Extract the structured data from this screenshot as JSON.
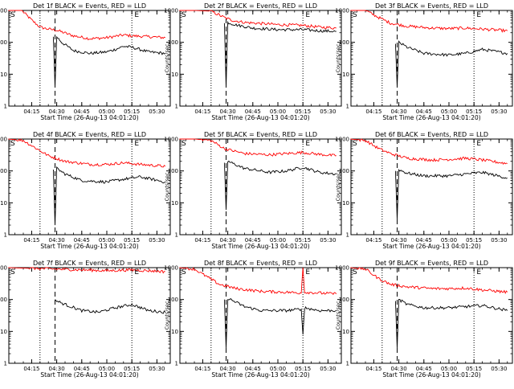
{
  "figure": {
    "title_suffix": "BLACK = Events, RED = LLD",
    "x_label": "Start Time (26-Aug-13 04:01:20)",
    "y_label": "Counts/sec",
    "x_ticks": [
      "04:15",
      "04:30",
      "04:45",
      "05:00",
      "05:15",
      "05:30"
    ],
    "y_ticks": [
      "1",
      "10",
      "100",
      "1000"
    ],
    "start_marker": "S",
    "end_marker": "E",
    "colors": {
      "events": "#000000",
      "lld": "#ff0000",
      "axes": "#000000"
    }
  },
  "chart_data": [
    {
      "type": "line",
      "title": "Det 1f BLACK = Events, RED = LLD",
      "xlabel": "Start Time (26-Aug-13 04:01:20)",
      "ylabel": "Counts/sec",
      "yscale": "log",
      "ylim": [
        1,
        1000
      ],
      "xlim": [
        "04:01:20",
        "05:38:00"
      ],
      "x_ticks": [
        "04:15",
        "04:30",
        "04:45",
        "05:00",
        "05:15",
        "05:30"
      ],
      "y_ticks": [
        "1",
        "10",
        "100",
        "1000"
      ],
      "markers": {
        "S": "04:01:20",
        "E": "05:18"
      },
      "vlines": {
        "dotted": [
          "04:20",
          "05:15"
        ],
        "dashed": [
          "04:29"
        ]
      },
      "series": [
        {
          "name": "RED = LLD",
          "color": "#ff0000",
          "x": [
            "04:01",
            "04:09",
            "04:15",
            "04:20",
            "04:25",
            "04:30",
            "04:40",
            "04:50",
            "05:00",
            "05:10",
            "05:15",
            "05:25",
            "05:35"
          ],
          "y": [
            1000,
            1000,
            500,
            300,
            260,
            240,
            160,
            130,
            140,
            170,
            160,
            150,
            140
          ]
        },
        {
          "name": "BLACK = Events",
          "color": "#000000",
          "x": [
            "04:28",
            "04:29",
            "04:30",
            "04:33",
            "04:40",
            "04:50",
            "05:00",
            "05:05",
            "05:10",
            "05:15",
            "05:25",
            "05:35"
          ],
          "y": [
            150,
            4,
            150,
            100,
            55,
            45,
            50,
            60,
            75,
            70,
            50,
            45
          ]
        }
      ]
    },
    {
      "type": "line",
      "title": "Det 2f BLACK = Events, RED = LLD",
      "xlabel": "Start Time (26-Aug-13 04:01:20)",
      "ylabel": "Counts/sec",
      "yscale": "log",
      "ylim": [
        1,
        1000
      ],
      "xlim": [
        "04:01:20",
        "05:38:00"
      ],
      "x_ticks": [
        "04:15",
        "04:30",
        "04:45",
        "05:00",
        "05:15",
        "05:30"
      ],
      "y_ticks": [
        "1",
        "10",
        "100",
        "1000"
      ],
      "markers": {
        "S": "04:01:20",
        "E": "05:18"
      },
      "vlines": {
        "dotted": [
          "04:20",
          "05:15"
        ],
        "dashed": [
          "04:29"
        ]
      },
      "series": [
        {
          "name": "RED = LLD",
          "color": "#ff0000",
          "x": [
            "04:01",
            "04:10",
            "04:20",
            "04:28",
            "04:32",
            "04:40",
            "05:00",
            "05:15",
            "05:25",
            "05:35"
          ],
          "y": [
            1000,
            1000,
            950,
            600,
            500,
            420,
            360,
            340,
            300,
            280
          ]
        },
        {
          "name": "BLACK = Events",
          "color": "#000000",
          "x": [
            "04:28",
            "04:29",
            "04:30",
            "04:35",
            "04:45",
            "05:00",
            "05:15",
            "05:25",
            "05:35"
          ],
          "y": [
            400,
            4,
            420,
            350,
            280,
            250,
            250,
            230,
            220
          ]
        }
      ]
    },
    {
      "type": "line",
      "title": "Det 3f BLACK = Events, RED = LLD",
      "xlabel": "Start Time (26-Aug-13 04:01:20)",
      "ylabel": "Counts/sec",
      "yscale": "log",
      "ylim": [
        1,
        1000
      ],
      "xlim": [
        "04:01:20",
        "05:38:00"
      ],
      "x_ticks": [
        "04:15",
        "04:30",
        "04:45",
        "05:00",
        "05:15",
        "05:30"
      ],
      "y_ticks": [
        "1",
        "10",
        "100",
        "1000"
      ],
      "markers": {
        "S": "04:01:20",
        "E": "05:18"
      },
      "vlines": {
        "dotted": [
          "04:20",
          "05:15"
        ],
        "dashed": [
          "04:29"
        ]
      },
      "series": [
        {
          "name": "RED = LLD",
          "color": "#ff0000",
          "x": [
            "04:01",
            "04:10",
            "04:18",
            "04:25",
            "04:35",
            "04:50",
            "05:00",
            "05:10",
            "05:20",
            "05:35"
          ],
          "y": [
            1000,
            1000,
            600,
            400,
            320,
            280,
            270,
            280,
            260,
            230
          ]
        },
        {
          "name": "BLACK = Events",
          "color": "#000000",
          "x": [
            "04:28",
            "04:29",
            "04:30",
            "04:35",
            "04:45",
            "05:00",
            "05:10",
            "05:20",
            "05:35"
          ],
          "y": [
            90,
            4,
            100,
            70,
            45,
            40,
            45,
            60,
            45
          ]
        }
      ]
    },
    {
      "type": "line",
      "title": "Det 4f BLACK = Events, RED = LLD",
      "xlabel": "Start Time (26-Aug-13 04:01:20)",
      "ylabel": "Counts/sec",
      "yscale": "log",
      "ylim": [
        1,
        1000
      ],
      "xlim": [
        "04:01:20",
        "05:38:00"
      ],
      "x_ticks": [
        "04:15",
        "04:30",
        "04:45",
        "05:00",
        "05:15",
        "05:30"
      ],
      "y_ticks": [
        "1",
        "10",
        "100",
        "1000"
      ],
      "markers": {
        "S": "04:01:20",
        "E": "05:18"
      },
      "vlines": {
        "dotted": [
          "04:20",
          "05:15"
        ],
        "dashed": [
          "04:29"
        ]
      },
      "series": [
        {
          "name": "RED = LLD",
          "color": "#ff0000",
          "x": [
            "04:01",
            "04:10",
            "04:18",
            "04:25",
            "04:35",
            "04:50",
            "05:00",
            "05:10",
            "05:20",
            "05:35"
          ],
          "y": [
            1000,
            900,
            500,
            300,
            200,
            160,
            160,
            180,
            160,
            140
          ]
        },
        {
          "name": "BLACK = Events",
          "color": "#000000",
          "x": [
            "04:28",
            "04:29",
            "04:30",
            "04:35",
            "04:45",
            "05:00",
            "05:10",
            "05:20",
            "05:35"
          ],
          "y": [
            110,
            2,
            120,
            80,
            50,
            45,
            55,
            65,
            45
          ]
        }
      ]
    },
    {
      "type": "line",
      "title": "Det 5f BLACK = Events, RED = LLD",
      "xlabel": "Start Time (26-Aug-13 04:01:20)",
      "ylabel": "Counts/sec",
      "yscale": "log",
      "ylim": [
        1,
        1000
      ],
      "xlim": [
        "04:01:20",
        "05:38:00"
      ],
      "x_ticks": [
        "04:15",
        "04:30",
        "04:45",
        "05:00",
        "05:15",
        "05:30"
      ],
      "y_ticks": [
        "1",
        "10",
        "100",
        "1000"
      ],
      "markers": {
        "S": "04:01:20",
        "E": "05:18"
      },
      "vlines": {
        "dotted": [
          "04:20",
          "05:15"
        ],
        "dashed": [
          "04:29"
        ]
      },
      "series": [
        {
          "name": "RED = LLD",
          "color": "#ff0000",
          "x": [
            "04:01",
            "04:10",
            "04:20",
            "04:28",
            "04:40",
            "04:55",
            "05:05",
            "05:15",
            "05:25",
            "05:35"
          ],
          "y": [
            1000,
            1000,
            900,
            500,
            350,
            320,
            350,
            380,
            330,
            300
          ]
        },
        {
          "name": "BLACK = Events",
          "color": "#000000",
          "x": [
            "04:28",
            "04:29",
            "04:30",
            "04:40",
            "04:55",
            "05:05",
            "05:15",
            "05:25",
            "05:35"
          ],
          "y": [
            180,
            6,
            200,
            120,
            90,
            100,
            130,
            90,
            80
          ]
        }
      ]
    },
    {
      "type": "line",
      "title": "Det 6f BLACK = Events, RED = LLD",
      "xlabel": "Start Time (26-Aug-13 04:01:20)",
      "ylabel": "Counts/sec",
      "yscale": "log",
      "ylim": [
        1,
        1000
      ],
      "xlim": [
        "04:01:20",
        "05:38:00"
      ],
      "x_ticks": [
        "04:15",
        "04:30",
        "04:45",
        "05:00",
        "05:15",
        "05:30"
      ],
      "y_ticks": [
        "1",
        "10",
        "100",
        "1000"
      ],
      "markers": {
        "S": "04:01:20",
        "E": "05:18"
      },
      "vlines": {
        "dotted": [
          "04:20",
          "05:15"
        ],
        "dashed": [
          "04:29"
        ]
      },
      "series": [
        {
          "name": "RED = LLD",
          "color": "#ff0000",
          "x": [
            "04:01",
            "04:10",
            "04:18",
            "04:25",
            "04:35",
            "04:50",
            "05:00",
            "05:10",
            "05:20",
            "05:35"
          ],
          "y": [
            1000,
            900,
            500,
            350,
            250,
            220,
            230,
            250,
            220,
            170
          ]
        },
        {
          "name": "BLACK = Events",
          "color": "#000000",
          "x": [
            "04:28",
            "04:29",
            "04:30",
            "04:35",
            "04:45",
            "05:00",
            "05:10",
            "05:20",
            "05:35"
          ],
          "y": [
            100,
            3,
            110,
            85,
            70,
            70,
            80,
            90,
            60
          ]
        }
      ]
    },
    {
      "type": "line",
      "title": "Det 7f BLACK = Events, RED = LLD",
      "xlabel": "Start Time (26-Aug-13 04:01:20)",
      "ylabel": "Counts/sec",
      "yscale": "log",
      "ylim": [
        1,
        1000
      ],
      "xlim": [
        "04:01:20",
        "05:38:00"
      ],
      "x_ticks": [
        "04:15",
        "04:30",
        "04:45",
        "05:00",
        "05:15",
        "05:30"
      ],
      "y_ticks": [
        "1",
        "10",
        "100",
        "1000"
      ],
      "markers": {
        "S": "04:01:20",
        "E": "05:18"
      },
      "vlines": {
        "dotted": [
          "04:20",
          "05:15"
        ],
        "dashed": [
          "04:29"
        ]
      },
      "series": [
        {
          "name": "RED = LLD",
          "color": "#ff0000",
          "x": [
            "04:01",
            "04:15",
            "04:30",
            "04:45",
            "05:00",
            "05:15",
            "05:25",
            "05:35"
          ],
          "y": [
            1000,
            950,
            900,
            850,
            800,
            850,
            800,
            750
          ]
        },
        {
          "name": "BLACK = Events",
          "color": "#000000",
          "x": [
            "04:29",
            "04:30",
            "04:35",
            "04:45",
            "04:55",
            "05:05",
            "05:15",
            "05:25",
            "05:35"
          ],
          "y": [
            100,
            90,
            70,
            45,
            40,
            55,
            70,
            45,
            40
          ]
        }
      ]
    },
    {
      "type": "line",
      "title": "Det 8f BLACK = Events, RED = LLD",
      "xlabel": "Start Time (26-Aug-13 04:01:20)",
      "ylabel": "Counts/sec",
      "yscale": "log",
      "ylim": [
        1,
        1000
      ],
      "xlim": [
        "04:01:20",
        "05:38:00"
      ],
      "x_ticks": [
        "04:15",
        "04:30",
        "04:45",
        "05:00",
        "05:15",
        "05:30"
      ],
      "y_ticks": [
        "1",
        "10",
        "100",
        "1000"
      ],
      "markers": {
        "S": "04:01:20",
        "E": "05:18"
      },
      "vlines": {
        "dotted": [
          "04:20",
          "05:15"
        ],
        "dashed": [
          "04:29"
        ]
      },
      "series": [
        {
          "name": "RED = LLD",
          "color": "#ff0000",
          "x": [
            "04:01",
            "04:10",
            "04:18",
            "04:25",
            "04:35",
            "04:50",
            "05:05",
            "05:14",
            "05:15",
            "05:16",
            "05:25",
            "05:35"
          ],
          "y": [
            1000,
            900,
            500,
            300,
            220,
            180,
            170,
            160,
            1000,
            170,
            160,
            150
          ]
        },
        {
          "name": "BLACK = Events",
          "color": "#000000",
          "x": [
            "04:28",
            "04:29",
            "04:30",
            "04:40",
            "04:50",
            "05:05",
            "05:14",
            "05:15",
            "05:16",
            "05:25",
            "05:35"
          ],
          "y": [
            100,
            3,
            110,
            60,
            45,
            45,
            50,
            8,
            55,
            45,
            45
          ]
        }
      ]
    },
    {
      "type": "line",
      "title": "Det 9f BLACK = Events, RED = LLD",
      "xlabel": "Start Time (26-Aug-13 04:01:20)",
      "ylabel": "Counts/sec",
      "yscale": "log",
      "ylim": [
        1,
        1000
      ],
      "xlim": [
        "04:01:20",
        "05:38:00"
      ],
      "x_ticks": [
        "04:15",
        "04:30",
        "04:45",
        "05:00",
        "05:15",
        "05:30"
      ],
      "y_ticks": [
        "1",
        "10",
        "100",
        "1000"
      ],
      "markers": {
        "S": "04:01:20",
        "E": "05:18"
      },
      "vlines": {
        "dotted": [
          "04:20",
          "05:15"
        ],
        "dashed": [
          "04:29"
        ]
      },
      "series": [
        {
          "name": "RED = LLD",
          "color": "#ff0000",
          "x": [
            "04:01",
            "04:10",
            "04:18",
            "04:25",
            "04:35",
            "04:50",
            "05:00",
            "05:10",
            "05:20",
            "05:35"
          ],
          "y": [
            1000,
            900,
            450,
            300,
            250,
            220,
            220,
            230,
            200,
            170
          ]
        },
        {
          "name": "BLACK = Events",
          "color": "#000000",
          "x": [
            "04:28",
            "04:29",
            "04:30",
            "04:35",
            "04:45",
            "05:00",
            "05:10",
            "05:20",
            "05:35"
          ],
          "y": [
            90,
            3,
            100,
            70,
            55,
            55,
            60,
            65,
            45
          ]
        }
      ]
    }
  ]
}
